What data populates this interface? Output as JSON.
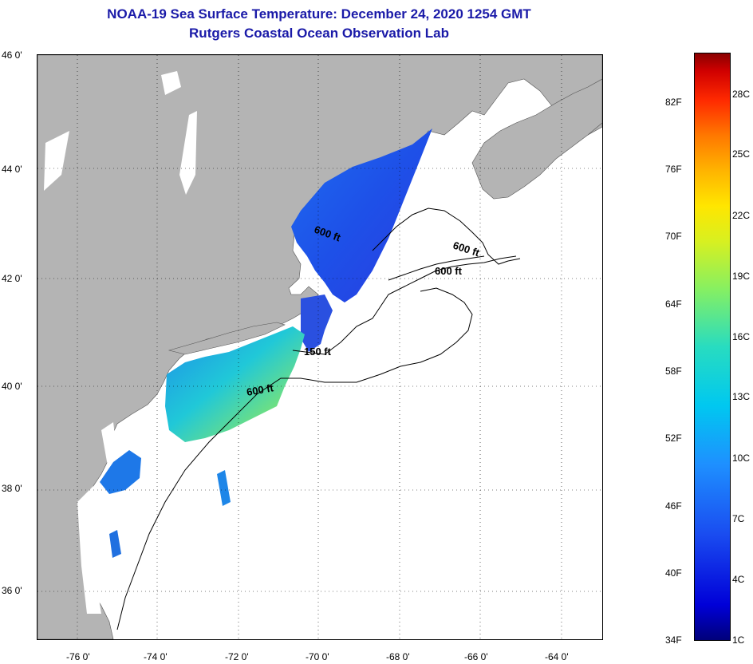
{
  "title": {
    "line1": "NOAA-19 Sea Surface Temperature:  December 24, 2020 1254 GMT",
    "line2": "Rutgers Coastal Ocean Observation Lab"
  },
  "map": {
    "lat_labels": [
      "46 0'",
      "44 0'",
      "42 0'",
      "40 0'",
      "38 0'",
      "36 0'"
    ],
    "lon_labels": [
      "-76 0'",
      "-74 0'",
      "-72 0'",
      "-70 0'",
      "-68 0'",
      "-66 0'",
      "-64 0'"
    ],
    "contour_labels": [
      "600 ft",
      "600 ft",
      "600 ft",
      "150 ft",
      "600 ft"
    ],
    "colors": {
      "land": "#b4b4b4",
      "water": "#ffffff",
      "contour": "#000000",
      "grid": "#000000"
    }
  },
  "colorbar": {
    "fahrenheit": [
      "82F",
      "76F",
      "70F",
      "64F",
      "58F",
      "52F",
      "46F",
      "40F",
      "34F"
    ],
    "celsius": [
      "28C",
      "25C",
      "22C",
      "19C",
      "16C",
      "13C",
      "10C",
      "7C",
      "4C",
      "1C"
    ]
  }
}
